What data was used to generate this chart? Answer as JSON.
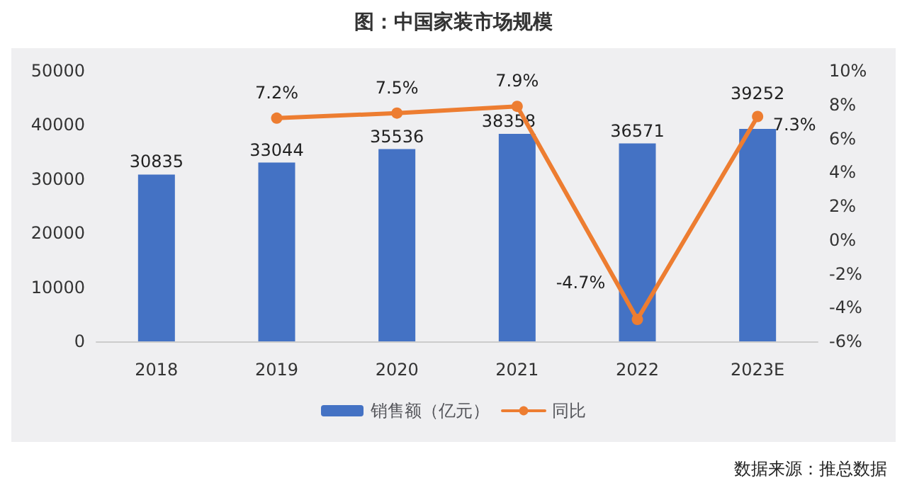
{
  "chart_data": {
    "type": "bar",
    "title": "图：中国家装市场规模",
    "categories": [
      "2018",
      "2019",
      "2020",
      "2021",
      "2022",
      "2023E"
    ],
    "series": [
      {
        "name": "销售额（亿元）",
        "color": "#4472c4",
        "values": [
          30835,
          33044,
          35536,
          38358,
          36571,
          39252
        ],
        "value_labels": [
          "30835",
          "33044",
          "35536",
          "38358",
          "36571",
          "39252"
        ]
      },
      {
        "name": "同比",
        "type": "line",
        "axis": "y2",
        "color": "#ed7d31",
        "marker": "circle",
        "values": [
          null,
          7.2,
          7.5,
          7.9,
          -4.7,
          7.3
        ],
        "value_labels": [
          null,
          "7.2%",
          "7.5%",
          "7.9%",
          "-4.7%",
          "7.3%"
        ]
      }
    ],
    "ylim": [
      0,
      50000
    ],
    "yticks": [
      0,
      10000,
      20000,
      30000,
      40000,
      50000
    ],
    "y2lim": [
      -6,
      10
    ],
    "y2ticks": [
      {
        "value": -6,
        "label": "-6%"
      },
      {
        "value": -4,
        "label": "-4%"
      },
      {
        "value": -2,
        "label": "-2%"
      },
      {
        "value": 0,
        "label": "0%"
      },
      {
        "value": 2,
        "label": "2%"
      },
      {
        "value": 4,
        "label": "4%"
      },
      {
        "value": 6,
        "label": "6%"
      },
      {
        "value": 8,
        "label": "8%"
      },
      {
        "value": 10,
        "label": "10%"
      }
    ],
    "grid": false,
    "legend": "bottom",
    "annotations": [
      "数据来源：推总数据"
    ]
  }
}
